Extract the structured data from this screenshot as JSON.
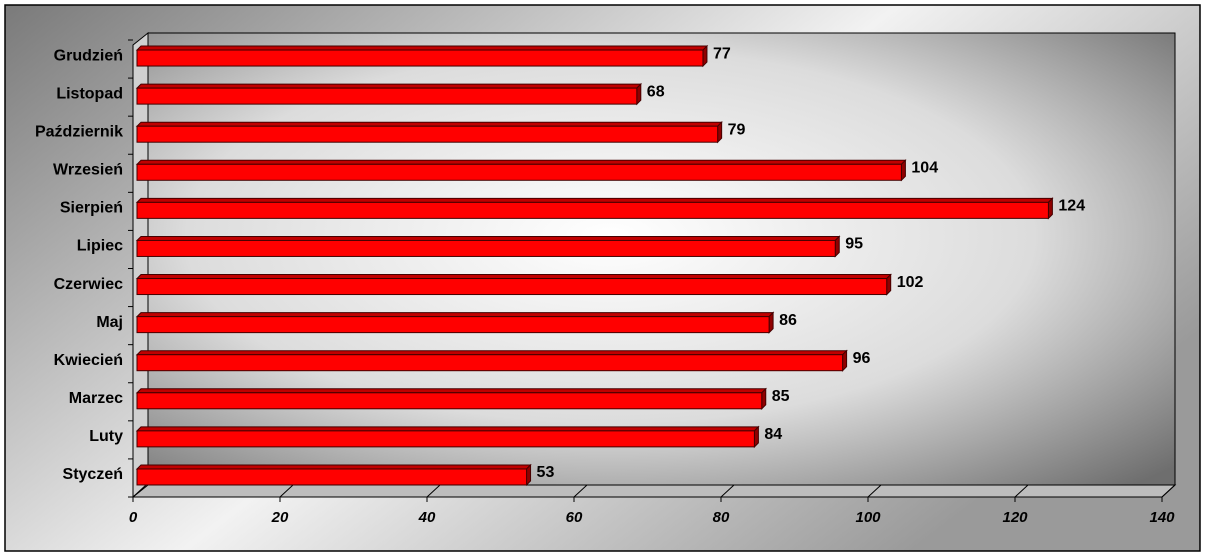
{
  "chart_data": {
    "type": "bar",
    "orientation": "horizontal",
    "categories": [
      "Styczeń",
      "Luty",
      "Marzec",
      "Kwiecień",
      "Maj",
      "Czerwiec",
      "Lipiec",
      "Sierpień",
      "Wrzesień",
      "Październik",
      "Listopad",
      "Grudzień"
    ],
    "values": [
      53,
      84,
      85,
      96,
      86,
      102,
      95,
      124,
      104,
      79,
      68,
      77
    ],
    "color": "#ff0000",
    "xlim": [
      0,
      140
    ],
    "xticks": [
      0,
      20,
      40,
      60,
      80,
      100,
      120,
      140
    ],
    "grid": false
  }
}
